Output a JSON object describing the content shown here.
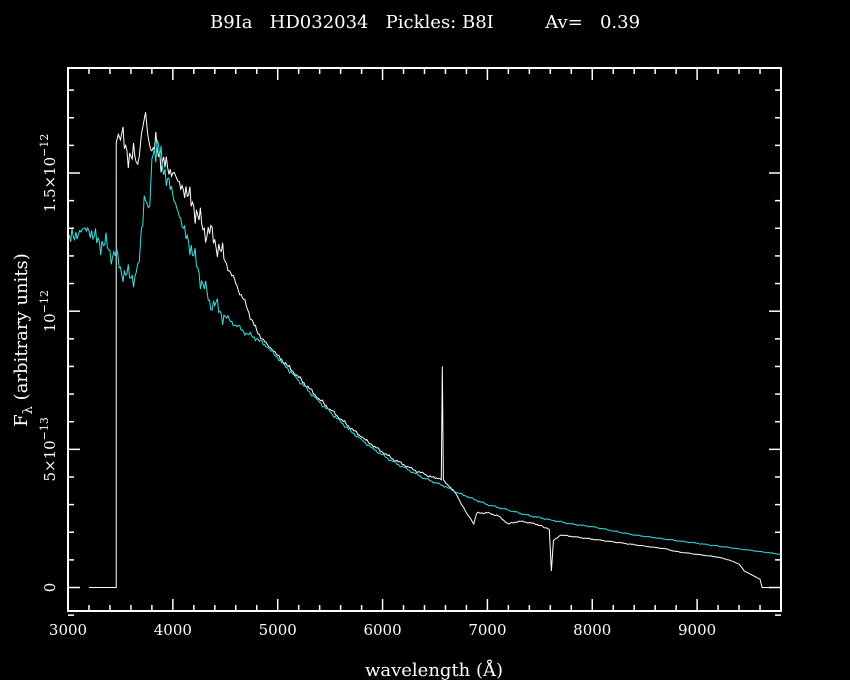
{
  "chart_data": {
    "type": "line",
    "title": "B9Ia   HD032034   Pickles: B8I         Av=   0.39",
    "xlabel": "wavelength (Å)",
    "ylabel_main": "F",
    "ylabel_sub": "λ",
    "ylabel_rest": " (arbitrary units)",
    "xlim": [
      3000,
      9800
    ],
    "ylim": [
      -8.5e-14,
      1.88e-12
    ],
    "x_ticks": [
      {
        "value": 3000,
        "label": "3000"
      },
      {
        "value": 4000,
        "label": "4000"
      },
      {
        "value": 5000,
        "label": "5000"
      },
      {
        "value": 6000,
        "label": "6000"
      },
      {
        "value": 7000,
        "label": "7000"
      },
      {
        "value": 8000,
        "label": "8000"
      },
      {
        "value": 9000,
        "label": "9000"
      }
    ],
    "y_ticks": [
      {
        "value": 0,
        "mant": "0",
        "exp": ""
      },
      {
        "value": 5e-13,
        "mant": "5×10",
        "exp": "−13"
      },
      {
        "value": 1e-12,
        "mant": "10",
        "exp": "−12"
      },
      {
        "value": 1.5e-12,
        "mant": "1.5×10",
        "exp": "−12"
      }
    ],
    "grid": false,
    "series": [
      {
        "color": "#ffffff",
        "points": [
          [
            3200,
            0
          ],
          [
            3460,
            0
          ],
          [
            3460,
            1.61e-12
          ],
          [
            3480,
            1.64e-12
          ],
          [
            3500,
            1.62e-12
          ],
          [
            3550,
            1.6e-12
          ],
          [
            3600,
            1.56e-12
          ],
          [
            3650,
            1.54e-12
          ],
          [
            3680,
            1.56e-12
          ],
          [
            3700,
            1.64e-12
          ],
          [
            3720,
            1.68e-12
          ],
          [
            3740,
            1.72e-12
          ],
          [
            3760,
            1.64e-12
          ],
          [
            3800,
            1.58e-12
          ],
          [
            3850,
            1.59e-12
          ],
          [
            3900,
            1.54e-12
          ],
          [
            3950,
            1.52e-12
          ],
          [
            4000,
            1.5e-12
          ],
          [
            4050,
            1.47e-12
          ],
          [
            4100,
            1.44e-12
          ],
          [
            4150,
            1.42e-12
          ],
          [
            4200,
            1.38e-12
          ],
          [
            4250,
            1.33e-12
          ],
          [
            4300,
            1.3e-12
          ],
          [
            4350,
            1.28e-12
          ],
          [
            4400,
            1.26e-12
          ],
          [
            4450,
            1.22e-12
          ],
          [
            4500,
            1.18e-12
          ],
          [
            4550,
            1.14e-12
          ],
          [
            4600,
            1.1e-12
          ],
          [
            4650,
            1.06e-12
          ],
          [
            4700,
            1.02e-12
          ],
          [
            4750,
            9.7e-13
          ],
          [
            4800,
            9.3e-13
          ],
          [
            4850,
            9e-13
          ],
          [
            4900,
            8.8e-13
          ],
          [
            4950,
            8.6e-13
          ],
          [
            5000,
            8.4e-13
          ],
          [
            5100,
            8e-13
          ],
          [
            5200,
            7.6e-13
          ],
          [
            5300,
            7.2e-13
          ],
          [
            5400,
            6.8e-13
          ],
          [
            5500,
            6.45e-13
          ],
          [
            5600,
            6.1e-13
          ],
          [
            5700,
            5.75e-13
          ],
          [
            5800,
            5.45e-13
          ],
          [
            5900,
            5.15e-13
          ],
          [
            6000,
            4.9e-13
          ],
          [
            6100,
            4.65e-13
          ],
          [
            6200,
            4.45e-13
          ],
          [
            6300,
            4.25e-13
          ],
          [
            6400,
            4.1e-13
          ],
          [
            6500,
            3.95e-13
          ],
          [
            6560,
            3.9e-13
          ],
          [
            6570,
            8e-13
          ],
          [
            6580,
            3.9e-13
          ],
          [
            6700,
            3.4e-13
          ],
          [
            6800,
            2.7e-13
          ],
          [
            6870,
            2.3e-13
          ],
          [
            6900,
            2.7e-13
          ],
          [
            7000,
            2.7e-13
          ],
          [
            7100,
            2.6e-13
          ],
          [
            7200,
            2.3e-13
          ],
          [
            7300,
            2.4e-13
          ],
          [
            7400,
            2.35e-13
          ],
          [
            7500,
            2.25e-13
          ],
          [
            7590,
            2.1e-13
          ],
          [
            7610,
            6e-14
          ],
          [
            7630,
            1.7e-13
          ],
          [
            7700,
            1.9e-13
          ],
          [
            7800,
            1.85e-13
          ],
          [
            7900,
            1.8e-13
          ],
          [
            8000,
            1.75e-13
          ],
          [
            8100,
            1.7e-13
          ],
          [
            8200,
            1.65e-13
          ],
          [
            8300,
            1.6e-13
          ],
          [
            8400,
            1.55e-13
          ],
          [
            8500,
            1.5e-13
          ],
          [
            8600,
            1.45e-13
          ],
          [
            8700,
            1.4e-13
          ],
          [
            8800,
            1.3e-13
          ],
          [
            8900,
            1.25e-13
          ],
          [
            9000,
            1.2e-13
          ],
          [
            9100,
            1.15e-13
          ],
          [
            9200,
            1.1e-13
          ],
          [
            9300,
            1e-13
          ],
          [
            9400,
            8.5e-14
          ],
          [
            9450,
            6e-14
          ],
          [
            9500,
            5e-14
          ],
          [
            9550,
            4e-14
          ],
          [
            9600,
            3e-14
          ],
          [
            9620,
            0
          ],
          [
            9800,
            0
          ]
        ]
      },
      {
        "color": "#33e0e0",
        "points": [
          [
            3000,
            1.26e-12
          ],
          [
            3050,
            1.27e-12
          ],
          [
            3100,
            1.28e-12
          ],
          [
            3150,
            1.3e-12
          ],
          [
            3200,
            1.29e-12
          ],
          [
            3250,
            1.27e-12
          ],
          [
            3300,
            1.25e-12
          ],
          [
            3350,
            1.24e-12
          ],
          [
            3400,
            1.22e-12
          ],
          [
            3450,
            1.2e-12
          ],
          [
            3500,
            1.16e-12
          ],
          [
            3550,
            1.13e-12
          ],
          [
            3600,
            1.12e-12
          ],
          [
            3650,
            1.14e-12
          ],
          [
            3680,
            1.18e-12
          ],
          [
            3700,
            1.3e-12
          ],
          [
            3740,
            1.4e-12
          ],
          [
            3780,
            1.38e-12
          ],
          [
            3800,
            1.55e-12
          ],
          [
            3850,
            1.62e-12
          ],
          [
            3900,
            1.52e-12
          ],
          [
            3950,
            1.48e-12
          ],
          [
            4000,
            1.42e-12
          ],
          [
            4050,
            1.36e-12
          ],
          [
            4100,
            1.3e-12
          ],
          [
            4150,
            1.25e-12
          ],
          [
            4200,
            1.2e-12
          ],
          [
            4250,
            1.14e-12
          ],
          [
            4300,
            1.08e-12
          ],
          [
            4350,
            1.04e-12
          ],
          [
            4400,
            1.02e-12
          ],
          [
            4450,
            1e-12
          ],
          [
            4500,
            9.8e-13
          ],
          [
            4600,
            9.5e-13
          ],
          [
            4700,
            9.2e-13
          ],
          [
            4800,
            9e-13
          ],
          [
            4900,
            8.7e-13
          ],
          [
            5000,
            8.3e-13
          ],
          [
            5100,
            7.9e-13
          ],
          [
            5200,
            7.5e-13
          ],
          [
            5300,
            7.1e-13
          ],
          [
            5400,
            6.7e-13
          ],
          [
            5500,
            6.35e-13
          ],
          [
            5600,
            6e-13
          ],
          [
            5700,
            5.65e-13
          ],
          [
            5800,
            5.35e-13
          ],
          [
            5900,
            5.05e-13
          ],
          [
            6000,
            4.8e-13
          ],
          [
            6100,
            4.55e-13
          ],
          [
            6200,
            4.35e-13
          ],
          [
            6300,
            4.15e-13
          ],
          [
            6400,
            3.95e-13
          ],
          [
            6500,
            3.8e-13
          ],
          [
            6600,
            3.65e-13
          ],
          [
            6700,
            3.45e-13
          ],
          [
            6800,
            3.3e-13
          ],
          [
            6900,
            3.15e-13
          ],
          [
            7000,
            3e-13
          ],
          [
            7200,
            2.8e-13
          ],
          [
            7400,
            2.6e-13
          ],
          [
            7600,
            2.45e-13
          ],
          [
            7800,
            2.3e-13
          ],
          [
            8000,
            2.2e-13
          ],
          [
            8200,
            2.05e-13
          ],
          [
            8400,
            1.9e-13
          ],
          [
            8600,
            1.8e-13
          ],
          [
            8800,
            1.7e-13
          ],
          [
            9000,
            1.6e-13
          ],
          [
            9200,
            1.5e-13
          ],
          [
            9400,
            1.4e-13
          ],
          [
            9600,
            1.3e-13
          ],
          [
            9800,
            1.2e-13
          ]
        ]
      }
    ]
  }
}
